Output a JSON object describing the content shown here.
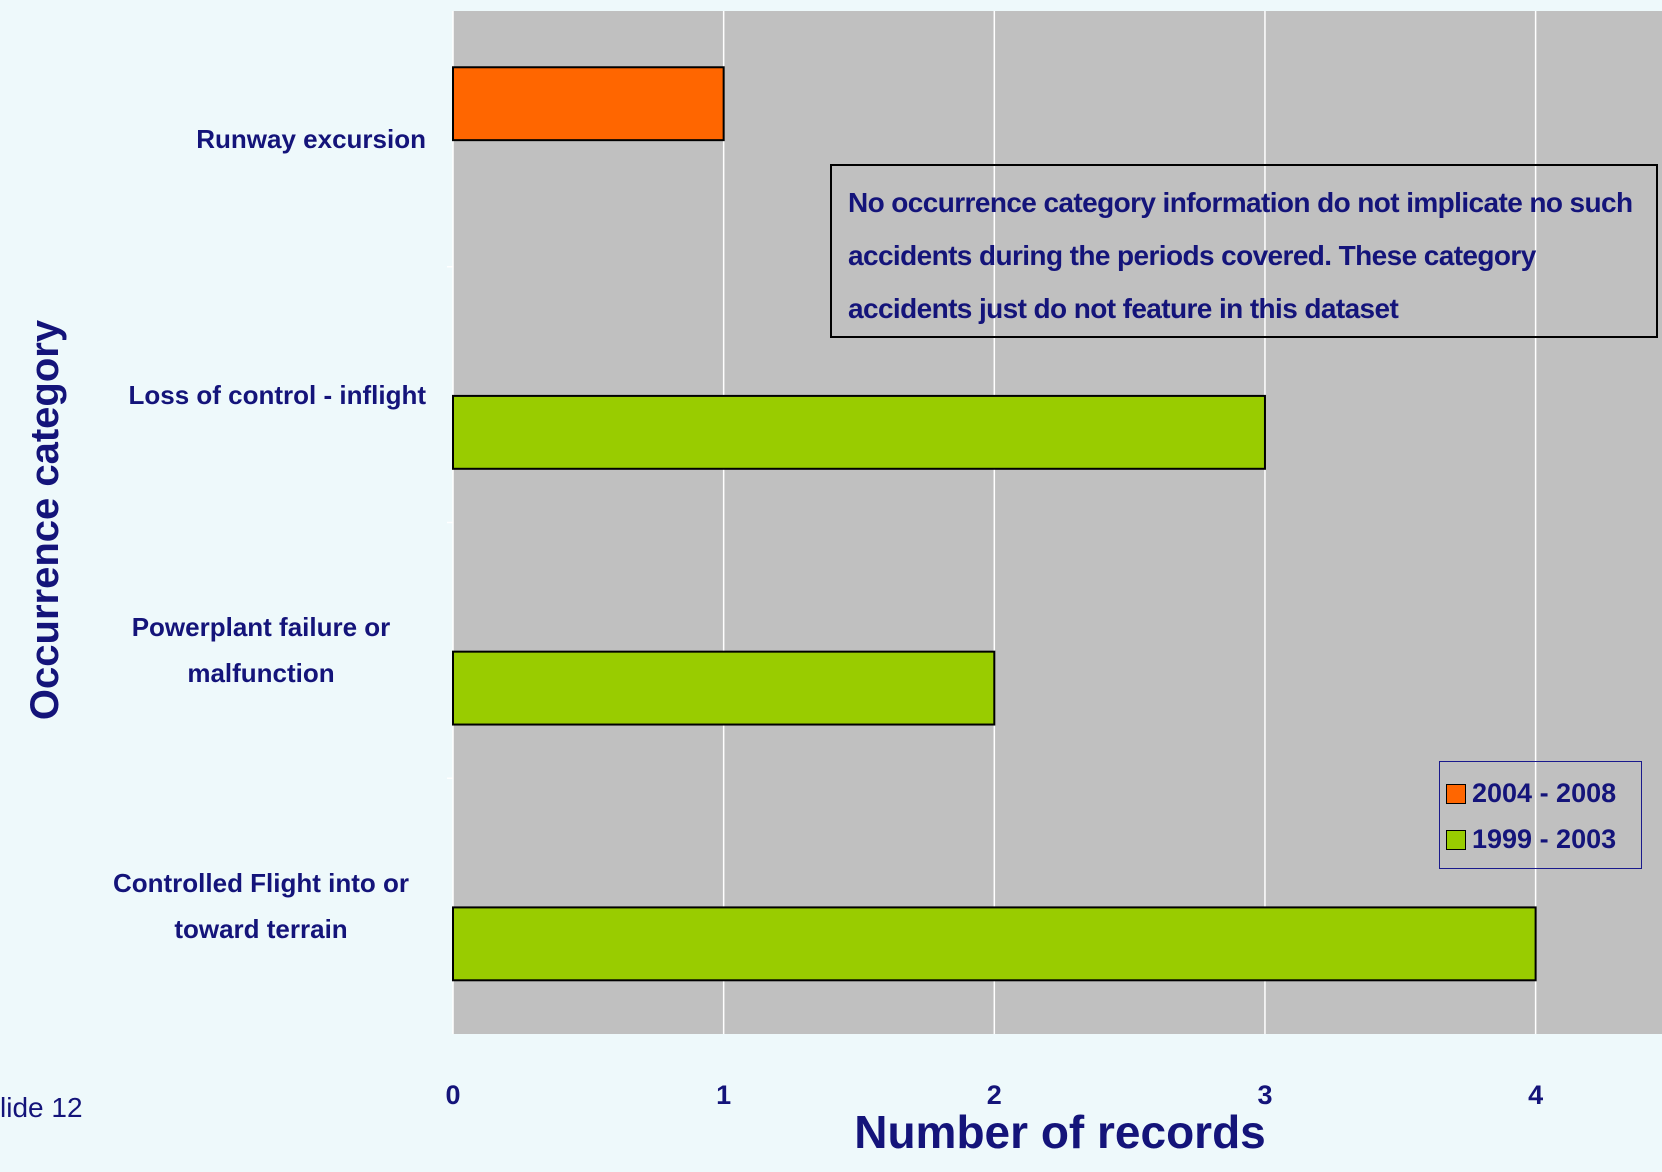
{
  "chart_data": {
    "type": "bar",
    "orientation": "horizontal",
    "x_label": "Number of records",
    "y_label": "Occurrence category",
    "categories": [
      "Runway excursion",
      "Loss of control - inflight",
      "Powerplant failure or malfunction",
      "Controlled Flight into or toward terrain"
    ],
    "series": [
      {
        "name": "2004 - 2008",
        "color": "#ff6600",
        "values": [
          1,
          null,
          null,
          null
        ]
      },
      {
        "name": "1999 - 2003",
        "color": "#99cc00",
        "values": [
          null,
          3,
          2,
          4
        ]
      }
    ],
    "xlim": [
      0,
      4.5
    ],
    "xticks": [
      0,
      1,
      2,
      3,
      4
    ],
    "grid": true,
    "legend": "lower right",
    "annotation": "No occurrence category information do not implicate no such accidents during the periods covered. These category accidents just do not feature in this dataset",
    "footer": "lide 12"
  }
}
